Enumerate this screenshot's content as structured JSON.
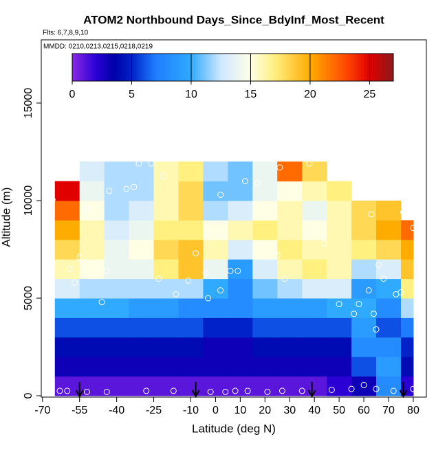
{
  "chart_data": {
    "type": "heatmap",
    "title": "ATOM2 Northbound Days_Since_BdyInf_Most_Recent",
    "subtitle": "Flts: 6,7,8,9,10",
    "annotation": "MMDD: 0210,0213,0215,0218,0219",
    "x_label": "Latitude (deg N)",
    "y_label": "Altitude (m)",
    "xlim": [
      -70.5,
      85.3
    ],
    "ylim": [
      -70,
      18240
    ],
    "xticks": [
      -70,
      -55,
      -40,
      -25,
      -10,
      0,
      10,
      20,
      30,
      40,
      50,
      60,
      70,
      80
    ],
    "yticks": [
      0,
      5000,
      10000,
      15000
    ],
    "x_edges": [
      -65,
      -55,
      -45,
      -35,
      -25,
      -15,
      -5,
      5,
      15,
      25,
      35,
      45,
      55,
      65,
      75,
      80
    ],
    "y_edges": [
      0,
      1000,
      2000,
      3000,
      4000,
      5000,
      6000,
      7000,
      8000,
      9000,
      10000,
      11000,
      12000
    ],
    "z": [
      [
        1,
        1,
        1,
        1,
        1,
        1,
        1,
        1,
        1,
        1,
        1,
        2,
        3,
        8,
        2
      ],
      [
        3,
        3,
        3,
        3,
        3,
        3,
        3,
        3,
        3,
        3,
        3,
        3,
        6,
        9,
        4
      ],
      [
        4,
        4,
        4,
        4,
        4,
        4,
        3,
        3,
        4,
        4,
        4,
        4,
        8,
        8,
        5
      ],
      [
        6,
        6,
        6,
        6,
        6,
        6,
        5,
        5,
        6,
        6,
        6,
        6,
        9,
        6,
        7
      ],
      [
        10,
        10,
        10,
        9,
        9,
        8,
        8,
        8,
        9,
        9,
        9,
        10,
        10,
        8,
        12
      ],
      [
        13,
        12,
        12,
        12,
        12,
        12,
        10,
        8,
        11,
        12,
        13,
        13,
        9,
        10,
        17
      ],
      [
        16,
        15,
        14,
        14,
        17,
        19,
        14,
        9,
        13,
        16,
        17,
        16,
        12,
        13,
        19
      ],
      [
        18,
        16,
        14,
        15,
        18,
        19,
        16,
        13,
        15,
        17,
        16,
        16,
        17,
        18,
        20
      ],
      [
        20,
        16,
        13,
        14,
        17,
        17,
        15,
        16,
        17,
        16,
        15,
        16,
        18,
        20,
        22
      ],
      [
        22,
        15,
        12,
        13,
        16,
        18,
        12,
        13,
        15,
        16,
        14,
        16,
        18,
        19,
        null
      ],
      [
        25,
        14,
        12,
        12,
        16,
        18,
        11,
        11,
        14,
        15,
        16,
        17,
        null,
        null,
        null
      ],
      [
        null,
        13,
        12,
        12,
        16,
        17,
        12,
        11,
        14,
        22,
        18,
        null,
        null,
        null,
        null
      ]
    ],
    "colorbar_lim": [
      0,
      27
    ],
    "colorbar_ticks": [
      0,
      5,
      10,
      15,
      20,
      25
    ],
    "colormap": [
      [
        0,
        "#8a2be2"
      ],
      [
        2,
        "#2a00d4"
      ],
      [
        3.5,
        "#0000a8"
      ],
      [
        5,
        "#0022c8"
      ],
      [
        7,
        "#1e7dff"
      ],
      [
        10,
        "#30aaff"
      ],
      [
        12.5,
        "#cfe8ff"
      ],
      [
        15,
        "#ffffe6"
      ],
      [
        17,
        "#fff080"
      ],
      [
        20,
        "#ffac00"
      ],
      [
        23,
        "#ff4a00"
      ],
      [
        25,
        "#e00000"
      ],
      [
        27,
        "#8b1a1a"
      ]
    ],
    "points": {
      "x": [
        -67,
        -63,
        -60,
        -52,
        -44,
        -28,
        -17,
        -2,
        4,
        8,
        13,
        21,
        27,
        35,
        47,
        55,
        60,
        65,
        72,
        80,
        -66,
        -52,
        -43,
        -36,
        -33,
        -31,
        -26,
        -21,
        2,
        12,
        17,
        26,
        38,
        63,
        76,
        80,
        -8,
        -4,
        6,
        2,
        9,
        25,
        28,
        44,
        50,
        58,
        62,
        66,
        64,
        56,
        68,
        65,
        73,
        75,
        -57,
        -59,
        -46,
        -16,
        -3,
        -11,
        -23,
        -55,
        -44
      ],
      "y": [
        200,
        250,
        250,
        200,
        200,
        250,
        250,
        200,
        200,
        250,
        250,
        200,
        250,
        250,
        300,
        350,
        550,
        350,
        250,
        350,
        10050,
        9600,
        10500,
        10600,
        10700,
        11900,
        11900,
        11250,
        10300,
        11000,
        10900,
        11700,
        11900,
        9300,
        9400,
        8600,
        7300,
        6300,
        6400,
        5400,
        6400,
        7200,
        6000,
        7800,
        4700,
        4700,
        5400,
        6700,
        4200,
        4200,
        6000,
        3400,
        5200,
        5300,
        5800,
        6500,
        4800,
        5200,
        5000,
        5900,
        6000,
        7100,
        6400
      ]
    },
    "arrows": [
      -55,
      -8,
      39,
      76
    ]
  }
}
